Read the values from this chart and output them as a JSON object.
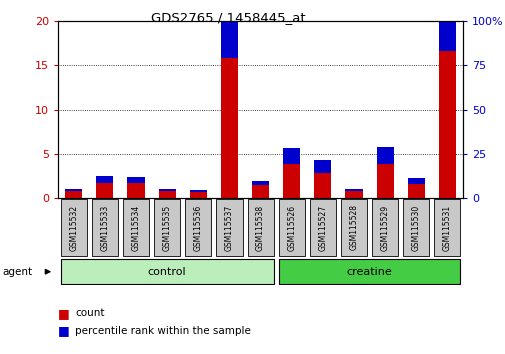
{
  "title": "GDS2765 / 1458445_at",
  "samples": [
    "GSM115532",
    "GSM115533",
    "GSM115534",
    "GSM115535",
    "GSM115536",
    "GSM115537",
    "GSM115538",
    "GSM115526",
    "GSM115527",
    "GSM115528",
    "GSM115529",
    "GSM115530",
    "GSM115531"
  ],
  "count": [
    0.8,
    1.7,
    1.7,
    0.8,
    0.7,
    15.8,
    1.5,
    3.9,
    2.8,
    0.8,
    3.9,
    1.6,
    16.6
  ],
  "percentile": [
    1.5,
    4.0,
    3.5,
    1.5,
    1.0,
    30.0,
    2.5,
    9.0,
    7.5,
    1.5,
    9.5,
    3.5,
    31.0
  ],
  "left_ylim": [
    0,
    20
  ],
  "right_ylim": [
    0,
    100
  ],
  "left_yticks": [
    0,
    5,
    10,
    15,
    20
  ],
  "right_yticks": [
    0,
    25,
    50,
    75,
    100
  ],
  "right_yticklabels": [
    "0",
    "25",
    "50",
    "75",
    "100%"
  ],
  "left_color": "#CC0000",
  "right_color": "#0000CC",
  "count_color": "#CC0000",
  "pct_color": "#0000CC",
  "bar_width": 0.55,
  "bg_color": "#FFFFFF",
  "grid_color": "#000000",
  "legend_count": "count",
  "legend_pct": "percentile rank within the sample",
  "control_color_light": "#BBEEBB",
  "creatine_color_dark": "#44CC44",
  "label_box_color": "#C8C8C8"
}
